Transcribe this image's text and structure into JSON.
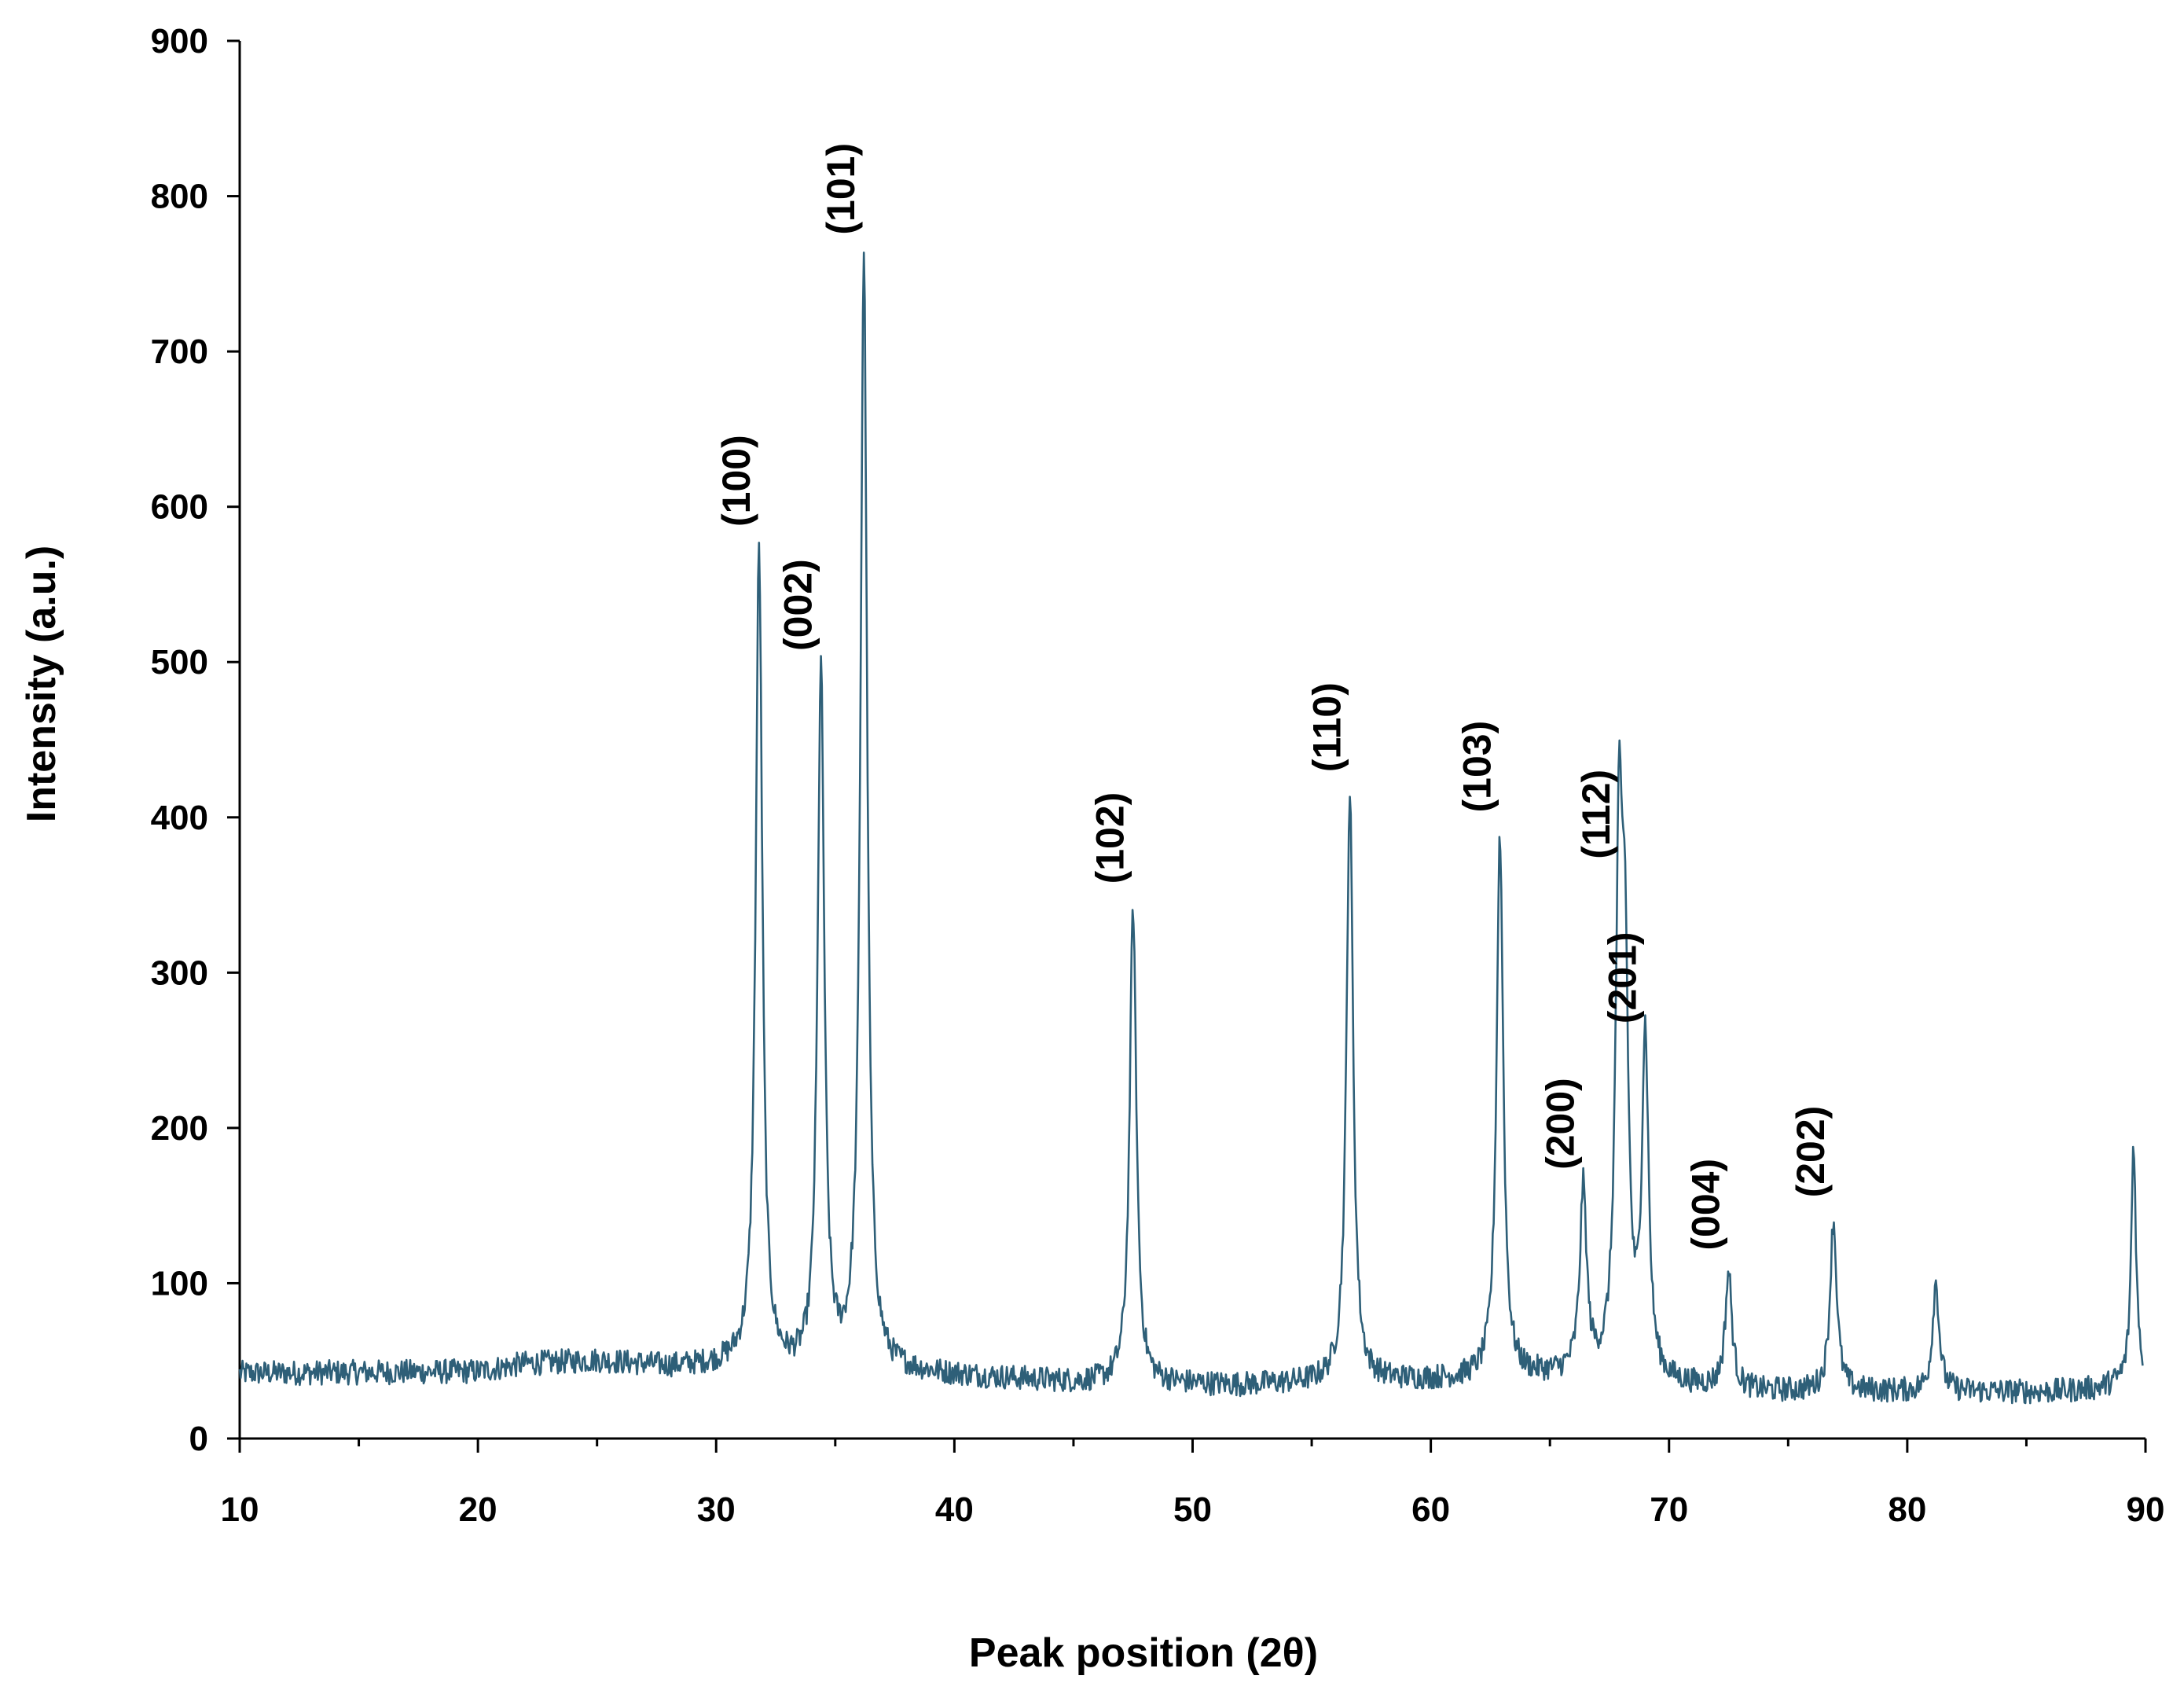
{
  "chart_data": {
    "type": "line",
    "title": "",
    "xlabel": "Peak position (2θ)",
    "ylabel": "Intensity (a.u.)",
    "xlim": [
      10,
      90
    ],
    "ylim": [
      0,
      900
    ],
    "x_major_ticks": [
      10,
      20,
      30,
      40,
      50,
      60,
      70,
      80,
      90
    ],
    "x_minor_ticks": [
      15,
      25,
      35,
      45,
      55,
      65,
      75,
      85
    ],
    "y_ticks": [
      0,
      100,
      200,
      300,
      400,
      500,
      600,
      700,
      800,
      900
    ],
    "x_tick_labels": [
      "10",
      "20",
      "30",
      "40",
      "50",
      "60",
      "70",
      "80",
      "90"
    ],
    "y_tick_labels": [
      "0",
      "100",
      "200",
      "300",
      "400",
      "500",
      "600",
      "700",
      "800",
      "900"
    ],
    "grid": false,
    "legend": "none",
    "series_color": "#2e5f78",
    "baseline": [
      {
        "x": 10,
        "y": 42
      },
      {
        "x": 20,
        "y": 43
      },
      {
        "x": 22,
        "y": 48
      },
      {
        "x": 25,
        "y": 50
      },
      {
        "x": 28,
        "y": 46
      },
      {
        "x": 31,
        "y": 47
      },
      {
        "x": 34,
        "y": 40
      },
      {
        "x": 38,
        "y": 42
      },
      {
        "x": 45,
        "y": 36
      },
      {
        "x": 52,
        "y": 34
      },
      {
        "x": 56,
        "y": 36
      },
      {
        "x": 62,
        "y": 38
      },
      {
        "x": 66,
        "y": 40
      },
      {
        "x": 70,
        "y": 34
      },
      {
        "x": 74,
        "y": 30
      },
      {
        "x": 78,
        "y": 30
      },
      {
        "x": 82,
        "y": 30
      },
      {
        "x": 86,
        "y": 30
      },
      {
        "x": 88,
        "y": 32
      },
      {
        "x": 90,
        "y": 40
      }
    ],
    "peaks": [
      {
        "label": "(100)",
        "x": 31.8,
        "y": 572
      },
      {
        "label": "(002)",
        "x": 34.4,
        "y": 492
      },
      {
        "label": "(101)",
        "x": 36.2,
        "y": 760
      },
      {
        "label": "(102)",
        "x": 47.5,
        "y": 342
      },
      {
        "label": "(110)",
        "x": 56.6,
        "y": 414
      },
      {
        "label": "(103)",
        "x": 62.9,
        "y": 388
      },
      {
        "label": "(200)",
        "x": 66.4,
        "y": 158
      },
      {
        "label": "(112)",
        "x": 67.9,
        "y": 358
      },
      {
        "label": "(201)",
        "x": 69.0,
        "y": 252
      },
      {
        "label": "(004)",
        "x": 72.5,
        "y": 106
      },
      {
        "label": "(202)",
        "x": 76.9,
        "y": 140
      }
    ],
    "unlabeled_peaks": [
      {
        "x": 68.15,
        "y": 265
      },
      {
        "x": 81.2,
        "y": 100
      },
      {
        "x": 89.5,
        "y": 190
      }
    ]
  }
}
